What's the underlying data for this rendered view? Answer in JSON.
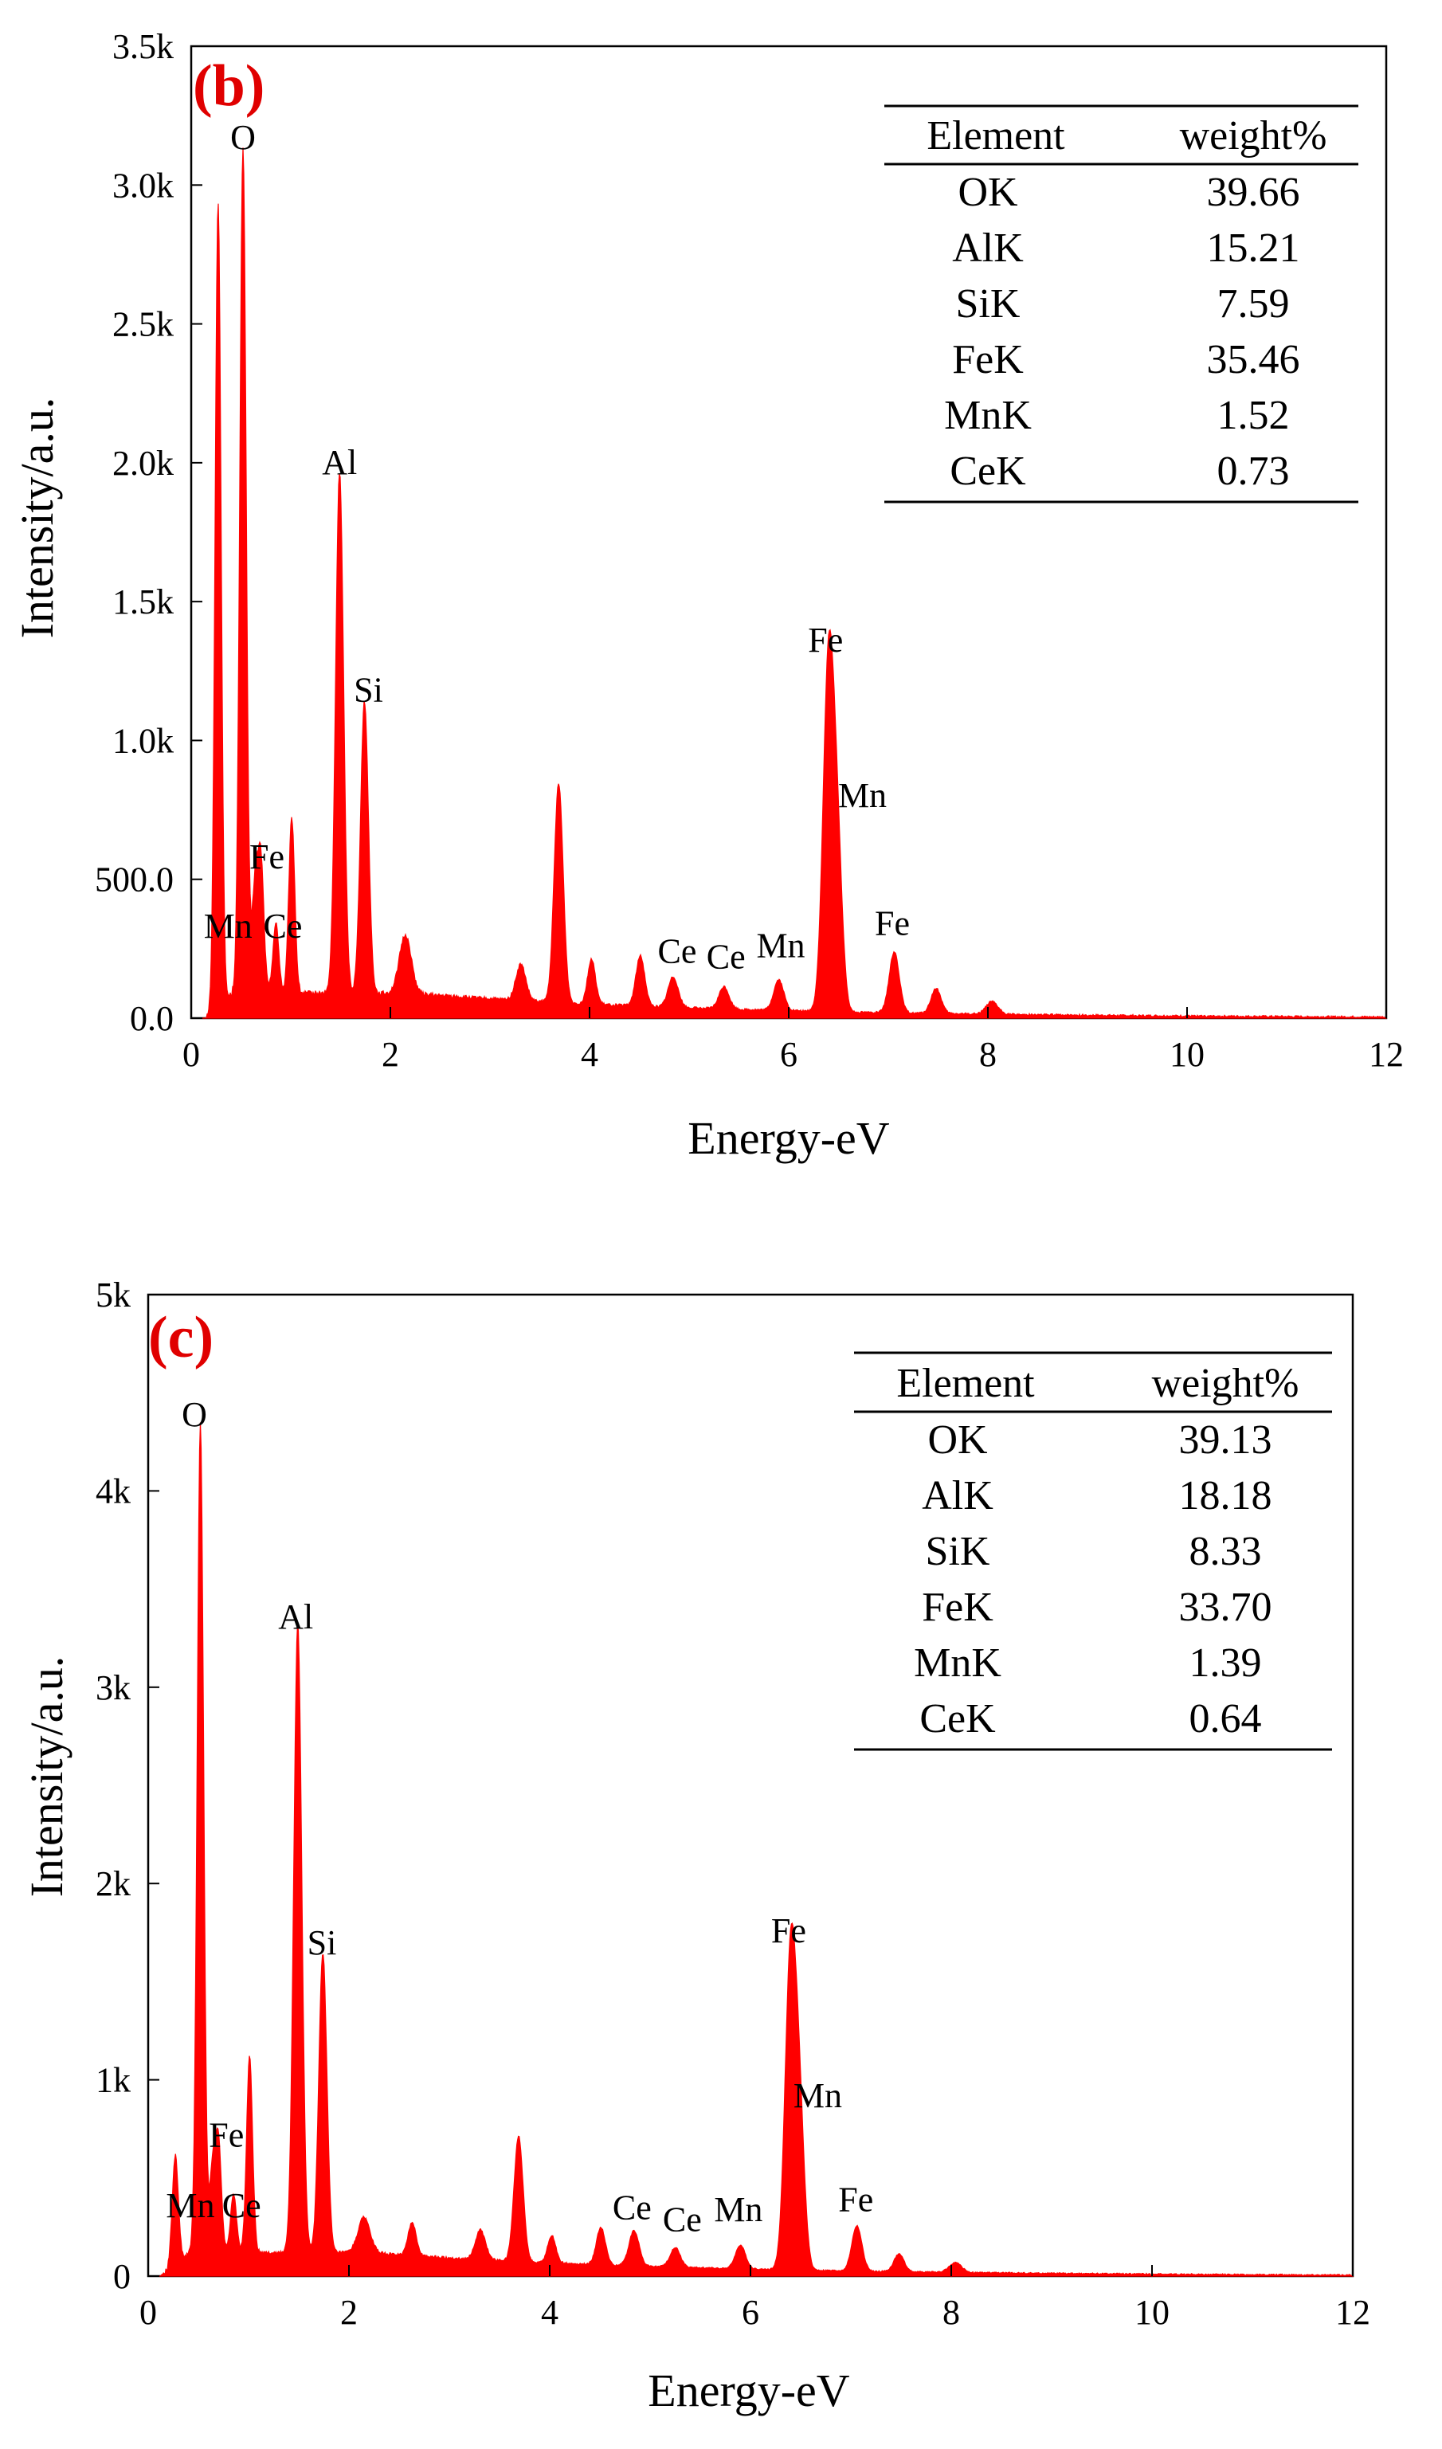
{
  "chart_data": [
    {
      "type": "area",
      "panel_label": "(b)",
      "xlabel": "Energy-eV",
      "ylabel": "Intensity/a.u.",
      "xlim": [
        0,
        12
      ],
      "ylim": [
        0,
        3500
      ],
      "x_ticks": [
        0,
        2,
        4,
        6,
        8,
        10,
        12
      ],
      "x_tick_labels": [
        "0",
        "2",
        "4",
        "6",
        "8",
        "10",
        "12"
      ],
      "y_ticks": [
        0,
        500,
        1000,
        1500,
        2000,
        2500,
        3000,
        3500
      ],
      "y_tick_labels": [
        "0.0",
        "500.0",
        "1.0k",
        "1.5k",
        "2.0k",
        "2.5k",
        "3.0k",
        "3.5k"
      ],
      "color": "#ff0000",
      "background_level": 90,
      "peaks": [
        {
          "x": 0.27,
          "y": 2900,
          "w": 0.03
        },
        {
          "x": 0.52,
          "y": 3050,
          "w": 0.032
        },
        {
          "x": 0.64,
          "y": 380,
          "w": 0.03
        },
        {
          "x": 0.7,
          "y": 470,
          "w": 0.03
        },
        {
          "x": 0.85,
          "y": 250,
          "w": 0.03
        },
        {
          "x": 1.01,
          "y": 630,
          "w": 0.03
        },
        {
          "x": 1.49,
          "y": 1880,
          "w": 0.04
        },
        {
          "x": 1.74,
          "y": 1050,
          "w": 0.04
        },
        {
          "x": 2.15,
          "y": 210,
          "w": 0.06
        },
        {
          "x": 3.31,
          "y": 130,
          "w": 0.05
        },
        {
          "x": 3.69,
          "y": 790,
          "w": 0.045
        },
        {
          "x": 4.02,
          "y": 160,
          "w": 0.04
        },
        {
          "x": 4.51,
          "y": 180,
          "w": 0.045
        },
        {
          "x": 4.84,
          "y": 110,
          "w": 0.05
        },
        {
          "x": 5.35,
          "y": 80,
          "w": 0.05
        },
        {
          "x": 5.9,
          "y": 110,
          "w": 0.05
        },
        {
          "x": 6.4,
          "y": 1250,
          "w": 0.055
        },
        {
          "x": 6.49,
          "y": 520,
          "w": 0.05
        },
        {
          "x": 7.06,
          "y": 220,
          "w": 0.05
        },
        {
          "x": 7.48,
          "y": 90,
          "w": 0.05
        },
        {
          "x": 8.04,
          "y": 45,
          "w": 0.06
        }
      ],
      "peak_labels": [
        {
          "text": "O",
          "x": 0.52,
          "y": 3130
        },
        {
          "text": "Al",
          "x": 1.49,
          "y": 1960
        },
        {
          "text": "Si",
          "x": 1.78,
          "y": 1140
        },
        {
          "text": "Fe",
          "x": 0.76,
          "y": 540
        },
        {
          "text": "Mn",
          "x": 0.37,
          "y": 290
        },
        {
          "text": "Ce",
          "x": 0.92,
          "y": 290
        },
        {
          "text": "Ce",
          "x": 4.88,
          "y": 200
        },
        {
          "text": "Ce",
          "x": 5.37,
          "y": 180
        },
        {
          "text": "Mn",
          "x": 5.92,
          "y": 220
        },
        {
          "text": "Fe",
          "x": 6.37,
          "y": 1320
        },
        {
          "text": "Mn",
          "x": 6.74,
          "y": 760
        },
        {
          "text": "Fe",
          "x": 7.04,
          "y": 300
        }
      ],
      "table": {
        "headers": [
          "Element",
          "weight%"
        ],
        "rows": [
          [
            "OK",
            "39.66"
          ],
          [
            "AlK",
            "15.21"
          ],
          [
            "SiK",
            "7.59"
          ],
          [
            "FeK",
            "35.46"
          ],
          [
            "MnK",
            "1.52"
          ],
          [
            "CeK",
            "0.73"
          ]
        ]
      }
    },
    {
      "type": "area",
      "panel_label": "(c)",
      "xlabel": "Energy-eV",
      "ylabel": "Intensity/a.u.",
      "xlim": [
        0,
        12
      ],
      "ylim": [
        0,
        5000
      ],
      "x_ticks": [
        0,
        2,
        4,
        6,
        8,
        10,
        12
      ],
      "x_tick_labels": [
        "0",
        "2",
        "4",
        "6",
        "8",
        "10",
        "12"
      ],
      "y_ticks": [
        0,
        1000,
        2000,
        3000,
        4000,
        5000
      ],
      "y_tick_labels": [
        "0",
        "1k",
        "2k",
        "3k",
        "4k",
        "5k"
      ],
      "color": "#ff0000",
      "background_level": 120,
      "peaks": [
        {
          "x": 0.27,
          "y": 560,
          "w": 0.03
        },
        {
          "x": 0.52,
          "y": 4220,
          "w": 0.032
        },
        {
          "x": 0.64,
          "y": 420,
          "w": 0.03
        },
        {
          "x": 0.7,
          "y": 560,
          "w": 0.03
        },
        {
          "x": 0.85,
          "y": 300,
          "w": 0.03
        },
        {
          "x": 1.01,
          "y": 1000,
          "w": 0.03
        },
        {
          "x": 1.49,
          "y": 3200,
          "w": 0.04
        },
        {
          "x": 1.74,
          "y": 1530,
          "w": 0.04
        },
        {
          "x": 2.15,
          "y": 180,
          "w": 0.06
        },
        {
          "x": 2.63,
          "y": 170,
          "w": 0.04
        },
        {
          "x": 3.31,
          "y": 150,
          "w": 0.05
        },
        {
          "x": 3.69,
          "y": 640,
          "w": 0.045
        },
        {
          "x": 4.02,
          "y": 140,
          "w": 0.04
        },
        {
          "x": 4.51,
          "y": 190,
          "w": 0.045
        },
        {
          "x": 4.84,
          "y": 180,
          "w": 0.05
        },
        {
          "x": 5.25,
          "y": 100,
          "w": 0.05
        },
        {
          "x": 5.9,
          "y": 120,
          "w": 0.05
        },
        {
          "x": 6.4,
          "y": 1600,
          "w": 0.055
        },
        {
          "x": 6.49,
          "y": 700,
          "w": 0.05
        },
        {
          "x": 7.06,
          "y": 230,
          "w": 0.05
        },
        {
          "x": 7.48,
          "y": 90,
          "w": 0.05
        },
        {
          "x": 8.04,
          "y": 50,
          "w": 0.06
        }
      ],
      "peak_labels": [
        {
          "text": "O",
          "x": 0.46,
          "y": 4330
        },
        {
          "text": "Al",
          "x": 1.47,
          "y": 3300
        },
        {
          "text": "Si",
          "x": 1.73,
          "y": 1640
        },
        {
          "text": "Fe",
          "x": 0.78,
          "y": 660
        },
        {
          "text": "Mn",
          "x": 0.42,
          "y": 300
        },
        {
          "text": "Ce",
          "x": 0.93,
          "y": 300
        },
        {
          "text": "Ce",
          "x": 4.82,
          "y": 290
        },
        {
          "text": "Ce",
          "x": 5.32,
          "y": 230
        },
        {
          "text": "Mn",
          "x": 5.88,
          "y": 280
        },
        {
          "text": "Fe",
          "x": 6.38,
          "y": 1700
        },
        {
          "text": "Mn",
          "x": 6.67,
          "y": 860
        },
        {
          "text": "Fe",
          "x": 7.05,
          "y": 330
        }
      ],
      "table": {
        "headers": [
          "Element",
          "weight%"
        ],
        "rows": [
          [
            "OK",
            "39.13"
          ],
          [
            "AlK",
            "18.18"
          ],
          [
            "SiK",
            "8.33"
          ],
          [
            "FeK",
            "33.70"
          ],
          [
            "MnK",
            "1.39"
          ],
          [
            "CeK",
            "0.64"
          ]
        ]
      }
    }
  ]
}
